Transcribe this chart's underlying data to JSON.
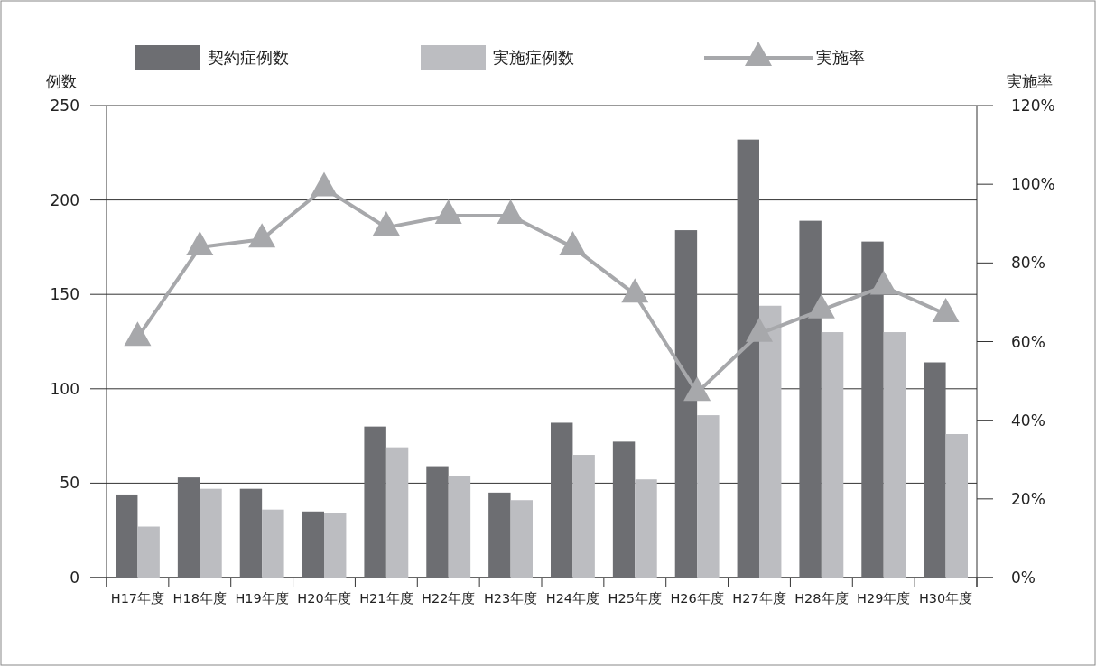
{
  "chart_data": {
    "type": "bar",
    "categories": [
      "H17年度",
      "H18年度",
      "H19年度",
      "H20年度",
      "H21年度",
      "H22年度",
      "H23年度",
      "H24年度",
      "H25年度",
      "H26年度",
      "H27年度",
      "H28年度",
      "H29年度",
      "H30年度"
    ],
    "ylabel": "例数",
    "y2label": "実施率",
    "series": [
      {
        "name": "契約症例数",
        "color": "#6d6e72",
        "values": [
          44,
          53,
          47,
          35,
          80,
          59,
          45,
          82,
          72,
          184,
          232,
          189,
          178,
          114
        ]
      },
      {
        "name": "実施症例数",
        "color": "#bcbdc1",
        "values": [
          27,
          47,
          36,
          34,
          69,
          54,
          41,
          65,
          52,
          86,
          144,
          130,
          130,
          76
        ]
      },
      {
        "name": "実施率",
        "type": "line",
        "axis": "y2",
        "color": "#a7a8ab",
        "marker": "triangle",
        "values": [
          61,
          84,
          86,
          99,
          89,
          92,
          92,
          84,
          72,
          47,
          62,
          68,
          74,
          67
        ]
      }
    ],
    "ylim": [
      0,
      250
    ],
    "yticks": [
      0,
      50,
      100,
      150,
      200,
      250
    ],
    "y2lim": [
      0,
      120
    ],
    "y2ticks": [
      {
        "value": 0,
        "label": "0%"
      },
      {
        "value": 20,
        "label": "20%"
      },
      {
        "value": 40,
        "label": "40%"
      },
      {
        "value": 60,
        "label": "60%"
      },
      {
        "value": 80,
        "label": "80%"
      },
      {
        "value": 100,
        "label": "100%"
      },
      {
        "value": 120,
        "label": "120%"
      }
    ],
    "grid": "y",
    "legend": "top"
  }
}
